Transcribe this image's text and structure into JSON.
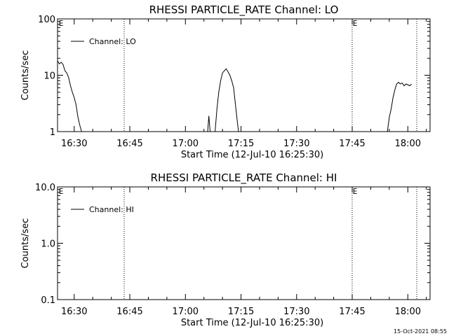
{
  "timestamp": "15-Oct-2021 08:55",
  "chart_data": [
    {
      "type": "line",
      "title": "RHESSI PARTICLE_RATE Channel: LO",
      "xlabel": "Start Time (12-Jul-10 16:25:30)",
      "ylabel": "Counts/sec",
      "yscale": "log",
      "ylim": [
        1,
        100
      ],
      "yticks": [
        {
          "v": 1,
          "label": "1"
        },
        {
          "v": 10,
          "label": "10"
        },
        {
          "v": 100,
          "label": "100"
        }
      ],
      "xlim": [
        "16:25:30",
        "18:06:00"
      ],
      "xticks": [
        "16:30",
        "16:45",
        "17:00",
        "17:15",
        "17:30",
        "17:45",
        "18:00"
      ],
      "legend": {
        "label": "Channel: LO",
        "placement": "top-left"
      },
      "markers": [
        "E",
        "E"
      ],
      "grid": false,
      "series": [
        {
          "name": "Channel: LO",
          "segments": [
            [
              [
                "16:25:30",
                18
              ],
              [
                "16:26:00",
                16
              ],
              [
                "16:26:30",
                17
              ],
              [
                "16:27:00",
                15.5
              ],
              [
                "16:27:30",
                12
              ],
              [
                "16:28:00",
                11
              ],
              [
                "16:28:30",
                9
              ],
              [
                "16:29:00",
                6.5
              ],
              [
                "16:29:30",
                5
              ],
              [
                "16:30:00",
                4
              ],
              [
                "16:30:30",
                3
              ],
              [
                "16:31:00",
                1.8
              ],
              [
                "16:31:30",
                1.3
              ],
              [
                "16:32:00",
                1
              ]
            ],
            [
              [
                "17:06:00",
                1
              ],
              [
                "17:06:20",
                1.9
              ],
              [
                "17:06:40",
                1
              ]
            ],
            [
              [
                "17:08:00",
                1
              ],
              [
                "17:08:30",
                2.5
              ],
              [
                "17:09:00",
                5
              ],
              [
                "17:09:30",
                8
              ],
              [
                "17:10:00",
                11
              ],
              [
                "17:10:30",
                12
              ],
              [
                "17:11:00",
                13
              ],
              [
                "17:11:30",
                11.5
              ],
              [
                "17:12:00",
                10
              ],
              [
                "17:12:30",
                8
              ],
              [
                "17:13:00",
                6
              ],
              [
                "17:13:30",
                3
              ],
              [
                "17:14:00",
                1.5
              ],
              [
                "17:14:20",
                1
              ]
            ],
            [
              [
                "17:54:30",
                1
              ],
              [
                "17:55:00",
                1.8
              ],
              [
                "17:55:30",
                2.5
              ],
              [
                "17:56:00",
                4
              ],
              [
                "17:56:30",
                5.5
              ],
              [
                "17:57:00",
                7
              ],
              [
                "17:57:30",
                7.5
              ],
              [
                "17:58:00",
                7
              ],
              [
                "17:58:30",
                7.3
              ],
              [
                "17:59:00",
                6.5
              ],
              [
                "17:59:30",
                7
              ],
              [
                "18:00:00",
                6.8
              ],
              [
                "18:00:30",
                6.5
              ],
              [
                "18:01:00",
                7
              ]
            ]
          ]
        }
      ]
    },
    {
      "type": "line",
      "title": "RHESSI PARTICLE_RATE Channel: HI",
      "xlabel": "Start Time (12-Jul-10 16:25:30)",
      "ylabel": "Counts/sec",
      "yscale": "log",
      "ylim": [
        0.1,
        10
      ],
      "yticks": [
        {
          "v": 0.1,
          "label": "0.1"
        },
        {
          "v": 1,
          "label": "1.0"
        },
        {
          "v": 10,
          "label": "10.0"
        }
      ],
      "xlim": [
        "16:25:30",
        "18:06:00"
      ],
      "xticks": [
        "16:30",
        "16:45",
        "17:00",
        "17:15",
        "17:30",
        "17:45",
        "18:00"
      ],
      "legend": {
        "label": "Channel: HI",
        "placement": "top-left"
      },
      "markers": [
        "E",
        "E"
      ],
      "grid": false,
      "series": [
        {
          "name": "Channel: HI",
          "segments": []
        }
      ]
    }
  ]
}
